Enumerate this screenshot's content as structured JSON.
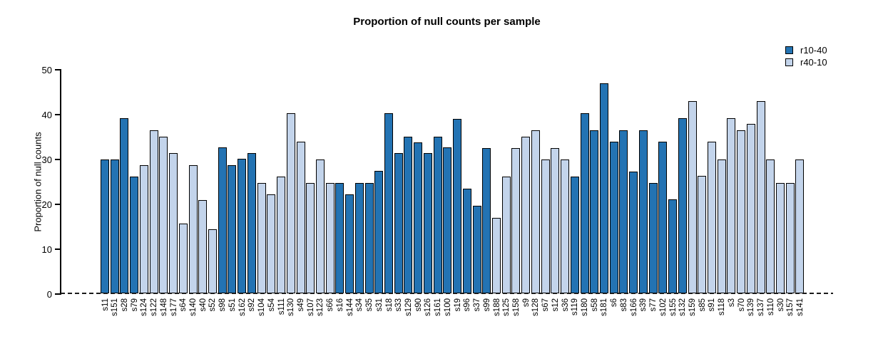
{
  "chart_data": {
    "type": "bar",
    "title": "Proportion of null counts per sample",
    "xlabel": "",
    "ylabel": "Proportion of null counts",
    "ylim": [
      0,
      50
    ],
    "yticks": [
      0,
      10,
      20,
      30,
      40,
      50
    ],
    "grid": false,
    "zero_line_style": "dashed",
    "legend_position": "top-right",
    "series_legend": [
      {
        "name": "r10-40",
        "color": "#2373b3"
      },
      {
        "name": "r40-10",
        "color": "#c3d4eb"
      }
    ],
    "bar_border_color": "#000000",
    "categories": [
      "s11",
      "s151",
      "s28",
      "s79",
      "s124",
      "s122",
      "s148",
      "s177",
      "s64",
      "s140",
      "s40",
      "s52",
      "s98",
      "s51",
      "s162",
      "s92",
      "s104",
      "s54",
      "s111",
      "s130",
      "s49",
      "s107",
      "s123",
      "s66",
      "s16",
      "s144",
      "s34",
      "s35",
      "s31",
      "s18",
      "s33",
      "s129",
      "s90",
      "s126",
      "s161",
      "s100",
      "s19",
      "s96",
      "s37",
      "s99",
      "s188",
      "s125",
      "s158",
      "s9",
      "s128",
      "s67",
      "s12",
      "s36",
      "s119",
      "s180",
      "s58",
      "s181",
      "s6",
      "s83",
      "s166",
      "s39",
      "s77",
      "s102",
      "s155",
      "s132",
      "s159",
      "s85",
      "s91",
      "s118",
      "s3",
      "s70",
      "s139",
      "s137",
      "s110",
      "s30",
      "s157",
      "s141"
    ],
    "values": [
      29.9,
      29.9,
      39.0,
      26.0,
      28.6,
      36.4,
      35.0,
      31.2,
      15.6,
      28.5,
      20.8,
      14.3,
      32.5,
      28.6,
      30.0,
      31.2,
      24.6,
      22.1,
      26.0,
      40.2,
      33.8,
      24.6,
      29.8,
      24.6,
      24.6,
      22.1,
      24.6,
      24.6,
      27.3,
      40.1,
      31.2,
      35.0,
      33.7,
      31.2,
      35.0,
      32.5,
      38.9,
      23.4,
      19.5,
      32.4,
      16.9,
      26.0,
      32.4,
      35.0,
      36.4,
      29.8,
      32.4,
      29.8,
      26.0,
      40.2,
      36.4,
      46.8,
      33.8,
      36.4,
      27.2,
      36.4,
      24.6,
      33.8,
      20.9,
      39.0,
      42.8,
      26.2,
      33.8,
      29.8,
      39.0,
      36.4,
      37.7,
      42.8,
      29.8,
      24.6,
      24.6,
      29.8
    ],
    "groups": [
      "r10-40",
      "r10-40",
      "r10-40",
      "r10-40",
      "r40-10",
      "r40-10",
      "r40-10",
      "r40-10",
      "r40-10",
      "r40-10",
      "r40-10",
      "r40-10",
      "r10-40",
      "r10-40",
      "r10-40",
      "r10-40",
      "r40-10",
      "r40-10",
      "r40-10",
      "r40-10",
      "r40-10",
      "r40-10",
      "r40-10",
      "r40-10",
      "r10-40",
      "r10-40",
      "r10-40",
      "r10-40",
      "r10-40",
      "r10-40",
      "r10-40",
      "r10-40",
      "r10-40",
      "r10-40",
      "r10-40",
      "r10-40",
      "r10-40",
      "r10-40",
      "r10-40",
      "r10-40",
      "r40-10",
      "r40-10",
      "r40-10",
      "r40-10",
      "r40-10",
      "r40-10",
      "r40-10",
      "r40-10",
      "r10-40",
      "r10-40",
      "r10-40",
      "r10-40",
      "r10-40",
      "r10-40",
      "r10-40",
      "r10-40",
      "r10-40",
      "r10-40",
      "r10-40",
      "r10-40",
      "r40-10",
      "r40-10",
      "r40-10",
      "r40-10",
      "r40-10",
      "r40-10",
      "r40-10",
      "r40-10",
      "r40-10",
      "r40-10",
      "r40-10",
      "r40-10"
    ]
  }
}
